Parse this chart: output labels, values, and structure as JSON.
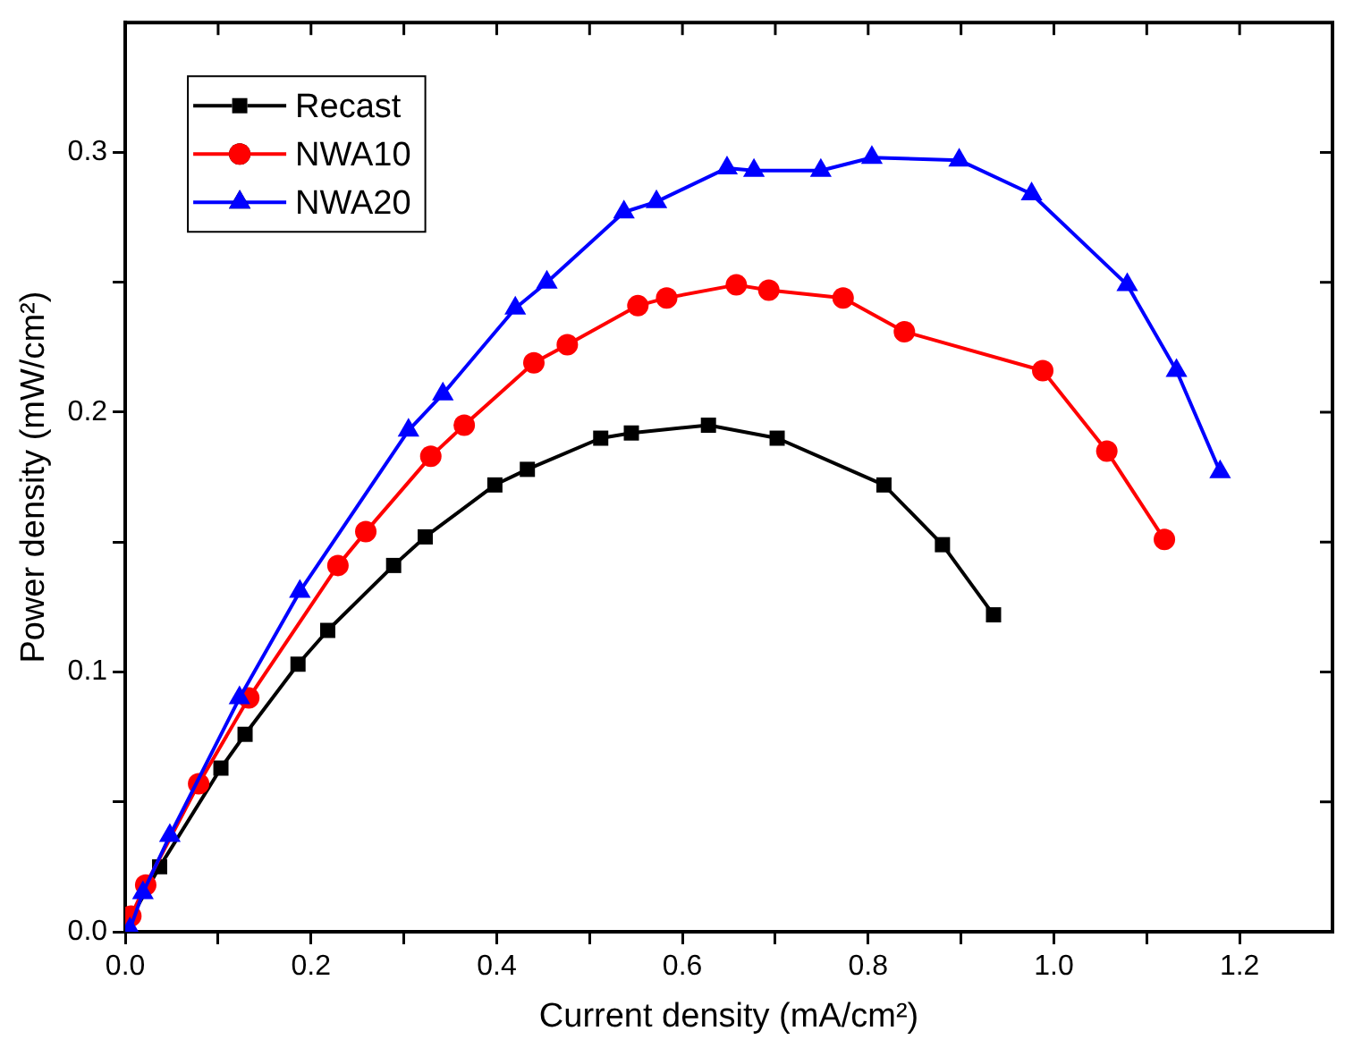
{
  "chart_data": {
    "type": "line",
    "xlabel": "Current density (mA/cm²)",
    "ylabel": "Power density (mW/cm²)",
    "xlim": [
      0,
      1.3
    ],
    "ylim": [
      0,
      0.35
    ],
    "xticks": [
      {
        "value": 0,
        "label": "0.0"
      },
      {
        "value": 0.1,
        "label": null
      },
      0.2,
      {
        "value": 0.3,
        "label": null
      },
      0.4,
      {
        "value": 0.5,
        "label": null
      },
      0.6,
      {
        "value": 0.7,
        "label": null
      },
      0.8,
      {
        "value": 0.9,
        "label": null
      },
      {
        "value": 1,
        "label": "1.0"
      },
      {
        "value": 1.1,
        "label": null
      },
      1.2
    ],
    "yticks": [
      {
        "value": 0,
        "label": "0.0"
      },
      {
        "value": 0.05,
        "label": null
      },
      0.1,
      {
        "value": 0.15,
        "label": null
      },
      0.2,
      {
        "value": 0.25,
        "label": null
      },
      0.3
    ],
    "grid": false,
    "legend": "top left",
    "line_style": "solid",
    "series": [
      {
        "name": "Recast",
        "color": "#000000",
        "marker": "square",
        "x": [
          0.001,
          0.037,
          0.103,
          0.129,
          0.186,
          0.218,
          0.289,
          0.323,
          0.398,
          0.433,
          0.512,
          0.545,
          0.628,
          0.702,
          0.817,
          0.88,
          0.935
        ],
        "values": [
          0.002,
          0.025,
          0.063,
          0.076,
          0.103,
          0.116,
          0.141,
          0.152,
          0.172,
          0.178,
          0.19,
          0.192,
          0.195,
          0.19,
          0.172,
          0.149,
          0.122
        ]
      },
      {
        "name": "NWA10",
        "color": "#ff0000",
        "marker": "circle",
        "x": [
          0.006,
          0.022,
          0.079,
          0.133,
          0.229,
          0.259,
          0.329,
          0.365,
          0.44,
          0.476,
          0.552,
          0.583,
          0.658,
          0.693,
          0.773,
          0.839,
          0.988,
          1.057,
          1.119
        ],
        "values": [
          0.006,
          0.018,
          0.057,
          0.09,
          0.141,
          0.154,
          0.183,
          0.195,
          0.219,
          0.226,
          0.241,
          0.244,
          0.249,
          0.247,
          0.244,
          0.231,
          0.216,
          0.185,
          0.151
        ]
      },
      {
        "name": "NWA20",
        "color": "#0000ff",
        "marker": "triangle",
        "x": [
          0.005,
          0.019,
          0.048,
          0.123,
          0.188,
          0.305,
          0.342,
          0.42,
          0.454,
          0.537,
          0.572,
          0.648,
          0.677,
          0.749,
          0.804,
          0.898,
          0.976,
          1.079,
          1.132,
          1.179
        ],
        "values": [
          0.001,
          0.015,
          0.037,
          0.09,
          0.131,
          0.193,
          0.207,
          0.24,
          0.25,
          0.277,
          0.281,
          0.294,
          0.293,
          0.293,
          0.298,
          0.297,
          0.284,
          0.249,
          0.216,
          0.177
        ]
      }
    ]
  }
}
